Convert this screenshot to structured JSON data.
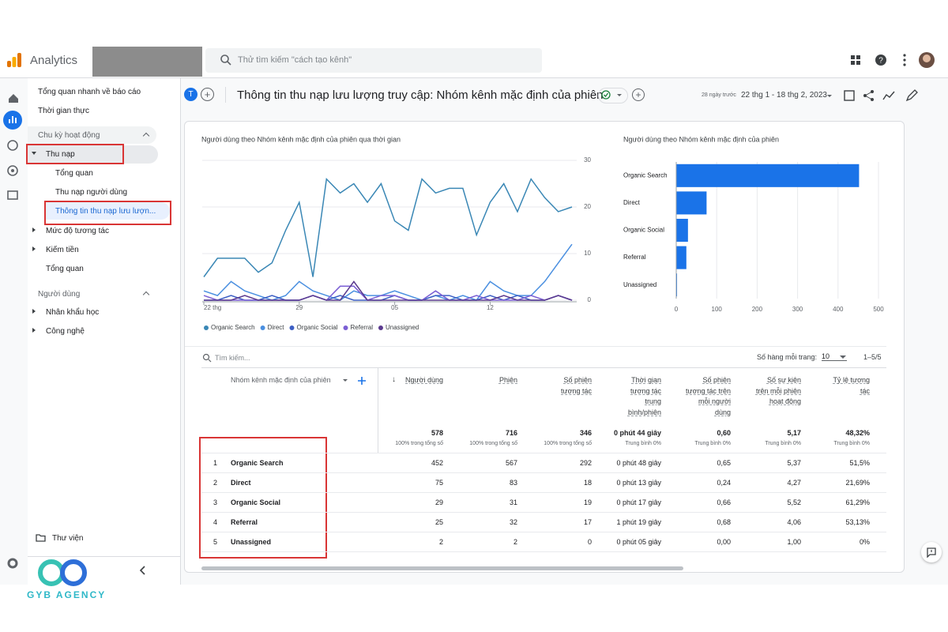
{
  "app": {
    "name": "Analytics",
    "search_placeholder": "Thử tìm kiếm \"cách tạo kênh\""
  },
  "sidebar": {
    "items": [
      "Tổng quan nhanh về báo cáo",
      "Thời gian thực",
      "Chu kỳ hoạt động",
      "Thu nạp",
      "Tổng quan",
      "Thu nạp người dùng",
      "Thông tin thu nạp lưu lượn...",
      "Mức độ tương tác",
      "Kiếm tiền",
      "Tổng quan",
      "Người dùng",
      "Nhân khẩu học",
      "Công nghệ"
    ],
    "library": "Thư viện"
  },
  "header": {
    "avatar": "T",
    "title": "Thông tin thu nạp lưu lượng truy cập: Nhóm kênh mặc định của phiên",
    "range_label": "28 ngày trước",
    "date_range": "22 thg 1 - 18 thg 2, 2023"
  },
  "chart_data": [
    {
      "type": "line",
      "title": "Người dùng theo Nhóm kênh mặc định của phiên qua thời gian",
      "categories": [
        "22 thg",
        null,
        null,
        null,
        null,
        null,
        null,
        "29",
        null,
        null,
        null,
        null,
        null,
        null,
        "05",
        null,
        null,
        null,
        null,
        null,
        null,
        "12",
        null,
        null,
        null,
        null,
        null,
        null
      ],
      "ylim": [
        0,
        30
      ],
      "yticks": [
        0,
        10,
        20,
        30
      ],
      "grid": true,
      "series": [
        {
          "name": "Organic Search",
          "color": "#3a87b5",
          "values": [
            5,
            9,
            9,
            9,
            6,
            8,
            15,
            21,
            5,
            26,
            23,
            25,
            21,
            25,
            17,
            15,
            26,
            23,
            24,
            24,
            14,
            21,
            25,
            19,
            26,
            22,
            19,
            20
          ]
        },
        {
          "name": "Direct",
          "color": "#4a8fe0",
          "values": [
            2,
            1,
            4,
            2,
            1,
            0,
            1,
            4,
            2,
            1,
            0,
            2,
            1,
            1,
            2,
            1,
            0,
            1,
            0,
            1,
            0,
            4,
            2,
            1,
            1,
            4,
            8,
            12
          ]
        },
        {
          "name": "Organic Social",
          "color": "#3d5fc4",
          "values": [
            0,
            0,
            1,
            0,
            0,
            1,
            0,
            0,
            1,
            0,
            1,
            0,
            0,
            0,
            1,
            0,
            0,
            1,
            1,
            0,
            0,
            1,
            0,
            1,
            0,
            0,
            1,
            0
          ]
        },
        {
          "name": "Referral",
          "color": "#7b5fd4",
          "values": [
            1,
            0,
            0,
            0,
            0,
            0,
            0,
            0,
            1,
            0,
            3,
            3,
            0,
            1,
            1,
            0,
            0,
            2,
            0,
            0,
            1,
            0,
            0,
            0,
            1,
            0,
            1,
            0
          ]
        },
        {
          "name": "Unassigned",
          "color": "#5b3a8e",
          "values": [
            0,
            0,
            0,
            1,
            0,
            0,
            0,
            0,
            1,
            0,
            0,
            4,
            0,
            0,
            0,
            0,
            0,
            0,
            0,
            0,
            0,
            0,
            1,
            0,
            0,
            0,
            1,
            0
          ]
        }
      ]
    },
    {
      "type": "hbar",
      "title": "Người dùng theo Nhóm kênh mặc định của phiên",
      "categories": [
        "Organic Search",
        "Direct",
        "Organic Social",
        "Referral",
        "Unassigned"
      ],
      "values": [
        452,
        75,
        29,
        25,
        2
      ],
      "color": "#1a73e8",
      "xlim": [
        0,
        500
      ],
      "xticks": [
        0,
        100,
        200,
        300,
        400,
        500
      ],
      "grid": true
    }
  ],
  "table": {
    "search_placeholder": "Tìm kiếm...",
    "rows_per_page_label": "Số hàng mỗi trang:",
    "rows_per_page": "10",
    "pagination": "1–5/5",
    "dimension_header": "Nhóm kênh mặc định của phiên",
    "columns": [
      {
        "header": "Người dùng",
        "total": "578",
        "total_note": "100% trong tổng số"
      },
      {
        "header": "Phiên",
        "total": "716",
        "total_note": "100% trong tổng số"
      },
      {
        "header": "Số phiên tương tác",
        "total": "346",
        "total_note": "100% trong tổng số"
      },
      {
        "header": "Thời gian tương tác trung bình/phiên",
        "total": "0 phút 44 giây",
        "total_note": "Trung bình 0%"
      },
      {
        "header": "Số phiên tương tác trên mỗi người dùng",
        "total": "0,60",
        "total_note": "Trung bình 0%"
      },
      {
        "header": "Số sự kiện trên mỗi phiên hoạt động",
        "total": "5,17",
        "total_note": "Trung bình 0%"
      },
      {
        "header": "Tỷ lệ tương tác",
        "total": "48,32%",
        "total_note": "Trung bình 0%"
      }
    ],
    "rows": [
      {
        "rank": "1",
        "name": "Organic Search",
        "cells": [
          "452",
          "567",
          "292",
          "0 phút 48 giây",
          "0,65",
          "5,37",
          "51,5%"
        ]
      },
      {
        "rank": "2",
        "name": "Direct",
        "cells": [
          "75",
          "83",
          "18",
          "0 phút 13 giây",
          "0,24",
          "4,27",
          "21,69%"
        ]
      },
      {
        "rank": "3",
        "name": "Organic Social",
        "cells": [
          "29",
          "31",
          "19",
          "0 phút 17 giây",
          "0,66",
          "5,52",
          "61,29%"
        ]
      },
      {
        "rank": "4",
        "name": "Referral",
        "cells": [
          "25",
          "32",
          "17",
          "1 phút 19 giây",
          "0,68",
          "4,06",
          "53,13%"
        ]
      },
      {
        "rank": "5",
        "name": "Unassigned",
        "cells": [
          "2",
          "2",
          "0",
          "0 phút 05 giây",
          "0,00",
          "1,00",
          "0%"
        ]
      }
    ]
  },
  "brand": "GYB AGENCY"
}
